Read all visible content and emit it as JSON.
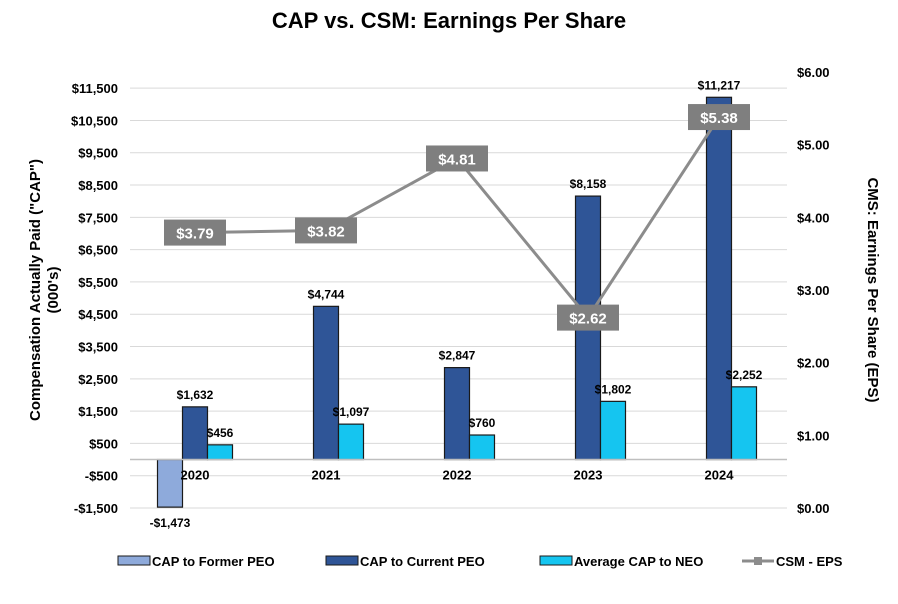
{
  "chart_data": {
    "type": "bar+line",
    "title": "CAP vs. CSM: Earnings Per Share",
    "categories": [
      "2020",
      "2021",
      "2022",
      "2023",
      "2024"
    ],
    "ylabel_left": "Compensation Actually Paid (\"CAP\") (000's)",
    "ylabel_left_lines": [
      "Compensation Actually Paid (\"CAP\")",
      "(000's)"
    ],
    "ylabel_right": "CMS: Earnings Per Share (EPS)",
    "ylim_left": [
      -1500,
      12000
    ],
    "yticks_left": [
      -1500,
      -500,
      500,
      1500,
      2500,
      3500,
      4500,
      5500,
      6500,
      7500,
      8500,
      9500,
      10500,
      11500
    ],
    "yticklabels_left": [
      "-$1,500",
      "-$500",
      "$500",
      "$1,500",
      "$2,500",
      "$3,500",
      "$4,500",
      "$5,500",
      "$6,500",
      "$7,500",
      "$8,500",
      "$9,500",
      "$10,500",
      "$11,500"
    ],
    "ylim_right": [
      0,
      6
    ],
    "yticks_right": [
      0,
      1,
      2,
      3,
      4,
      5,
      6
    ],
    "yticklabels_right": [
      "$0.00",
      "$1.00",
      "$2.00",
      "$3.00",
      "$4.00",
      "$5.00",
      "$6.00"
    ],
    "grid": true,
    "legend_position": "bottom",
    "series": [
      {
        "name": "CAP to Former PEO",
        "type": "bar",
        "axis": "left",
        "color": "#8eaadb",
        "values": [
          -1473,
          null,
          null,
          null,
          null
        ],
        "labels": [
          "-$1,473",
          null,
          null,
          null,
          null
        ]
      },
      {
        "name": "CAP to Current PEO",
        "type": "bar",
        "axis": "left",
        "color": "#2f5597",
        "values": [
          1632,
          4744,
          2847,
          8158,
          11217
        ],
        "labels": [
          "$1,632",
          "$4,744",
          "$2,847",
          "$8,158",
          "$11,217"
        ]
      },
      {
        "name": "Average CAP to NEO",
        "type": "bar",
        "axis": "left",
        "color": "#15c5f0",
        "values": [
          456,
          1097,
          760,
          1802,
          2252
        ],
        "labels": [
          "$456",
          "$1,097",
          "$760",
          "$1,802",
          "$2,252"
        ]
      },
      {
        "name": "CSM - EPS",
        "type": "line",
        "axis": "right",
        "color": "#8c8c8c",
        "values": [
          3.79,
          3.82,
          4.81,
          2.62,
          5.38
        ],
        "labels": [
          "$3.79",
          "$3.82",
          "$4.81",
          "$2.62",
          "$5.38"
        ]
      }
    ]
  }
}
